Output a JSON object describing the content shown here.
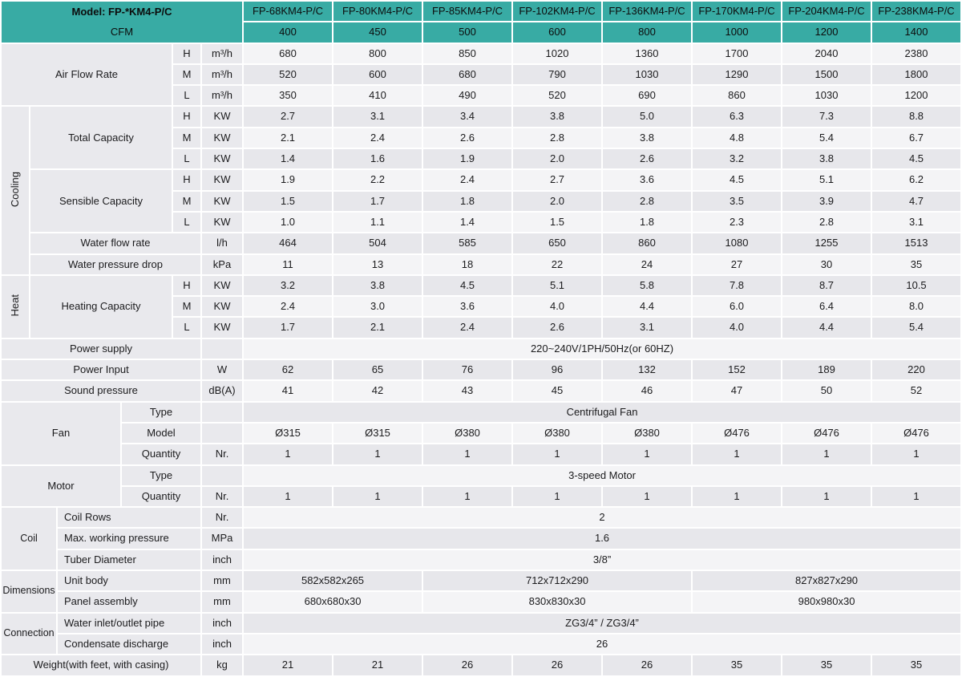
{
  "header": {
    "model_label": "Model: FP-*KM4-P/C",
    "cfm_label": "CFM",
    "models": [
      "FP-68KM4-P/C",
      "FP-80KM4-P/C",
      "FP-85KM4-P/C",
      "FP-102KM4-P/C",
      "FP-136KM4-P/C",
      "FP-170KM4-P/C",
      "FP-204KM4-P/C",
      "FP-238KM4-P/C"
    ],
    "cfm": [
      "400",
      "450",
      "500",
      "600",
      "800",
      "1000",
      "1200",
      "1400"
    ]
  },
  "labels": {
    "air_flow": "Air Flow Rate",
    "cooling": "Cooling",
    "total_capacity": "Total Capacity",
    "sensible_capacity": "Sensible Capacity",
    "water_flow_rate": "Water flow rate",
    "water_pressure_drop": "Water pressure drop",
    "heat": "Heat",
    "heating_capacity": "Heating Capacity",
    "power_supply": "Power supply",
    "power_input": "Power Input",
    "sound_pressure": "Sound pressure",
    "fan": "Fan",
    "motor": "Motor",
    "type": "Type",
    "model": "Model",
    "quantity": "Quantity",
    "coil": "Coil",
    "coil_rows": "Coil Rows",
    "max_working_pressure": "Max. working pressure",
    "tuber_diameter": "Tuber Diameter",
    "dimensions": "Dimensions",
    "unit_body": "Unit body",
    "panel_assembly": "Panel assembly",
    "connection": "Connection",
    "water_inlet_outlet": "Water inlet/outlet pipe",
    "condensate_discharge": "Condensate discharge",
    "weight": "Weight(with feet, with casing)",
    "H": "H",
    "M": "M",
    "L": "L"
  },
  "units": {
    "air": "m³/h",
    "kw": "KW",
    "lh": "l/h",
    "kpa": "kPa",
    "w": "W",
    "dba": "dB(A)",
    "nr": "Nr.",
    "mpa": "MPa",
    "inch": "inch",
    "mm": "mm",
    "kg": "kg"
  },
  "values": {
    "air_h": [
      "680",
      "800",
      "850",
      "1020",
      "1360",
      "1700",
      "2040",
      "2380"
    ],
    "air_m": [
      "520",
      "600",
      "680",
      "790",
      "1030",
      "1290",
      "1500",
      "1800"
    ],
    "air_l": [
      "350",
      "410",
      "490",
      "520",
      "690",
      "860",
      "1030",
      "1200"
    ],
    "cool_total_h": [
      "2.7",
      "3.1",
      "3.4",
      "3.8",
      "5.0",
      "6.3",
      "7.3",
      "8.8"
    ],
    "cool_total_m": [
      "2.1",
      "2.4",
      "2.6",
      "2.8",
      "3.8",
      "4.8",
      "5.4",
      "6.7"
    ],
    "cool_total_l": [
      "1.4",
      "1.6",
      "1.9",
      "2.0",
      "2.6",
      "3.2",
      "3.8",
      "4.5"
    ],
    "cool_sens_h": [
      "1.9",
      "2.2",
      "2.4",
      "2.7",
      "3.6",
      "4.5",
      "5.1",
      "6.2"
    ],
    "cool_sens_m": [
      "1.5",
      "1.7",
      "1.8",
      "2.0",
      "2.8",
      "3.5",
      "3.9",
      "4.7"
    ],
    "cool_sens_l": [
      "1.0",
      "1.1",
      "1.4",
      "1.5",
      "1.8",
      "2.3",
      "2.8",
      "3.1"
    ],
    "water_flow": [
      "464",
      "504",
      "585",
      "650",
      "860",
      "1080",
      "1255",
      "1513"
    ],
    "water_pressure": [
      "11",
      "13",
      "18",
      "22",
      "24",
      "27",
      "30",
      "35"
    ],
    "heat_h": [
      "3.2",
      "3.8",
      "4.5",
      "5.1",
      "5.8",
      "7.8",
      "8.7",
      "10.5"
    ],
    "heat_m": [
      "2.4",
      "3.0",
      "3.6",
      "4.0",
      "4.4",
      "6.0",
      "6.4",
      "8.0"
    ],
    "heat_l": [
      "1.7",
      "2.1",
      "2.4",
      "2.6",
      "3.1",
      "4.0",
      "4.4",
      "5.4"
    ],
    "power_supply": "220~240V/1PH/50Hz(or 60HZ)",
    "power_input": [
      "62",
      "65",
      "76",
      "96",
      "132",
      "152",
      "189",
      "220"
    ],
    "sound_pressure": [
      "41",
      "42",
      "43",
      "45",
      "46",
      "47",
      "50",
      "52"
    ],
    "fan_type": "Centrifugal Fan",
    "fan_model": [
      "Ø315",
      "Ø315",
      "Ø380",
      "Ø380",
      "Ø380",
      "Ø476",
      "Ø476",
      "Ø476"
    ],
    "fan_qty": [
      "1",
      "1",
      "1",
      "1",
      "1",
      "1",
      "1",
      "1"
    ],
    "motor_type": "3-speed Motor",
    "motor_qty": [
      "1",
      "1",
      "1",
      "1",
      "1",
      "1",
      "1",
      "1"
    ],
    "coil_rows": "2",
    "max_working_pressure": "1.6",
    "tuber_diameter": "3/8”",
    "unit_body": [
      "582x582x265",
      "712x712x290",
      "827x827x290"
    ],
    "panel_assembly": [
      "680x680x30",
      "830x830x30",
      "980x980x30"
    ],
    "water_pipe": "ZG3/4” / ZG3/4”",
    "condensate": "26",
    "weight": [
      "21",
      "21",
      "26",
      "26",
      "26",
      "35",
      "35",
      "35"
    ]
  },
  "colors": {
    "header_teal": "#38aba4",
    "row_dark": "#e7e7eb",
    "row_light": "#f4f4f6",
    "label_gray": "#e9e9ed"
  }
}
